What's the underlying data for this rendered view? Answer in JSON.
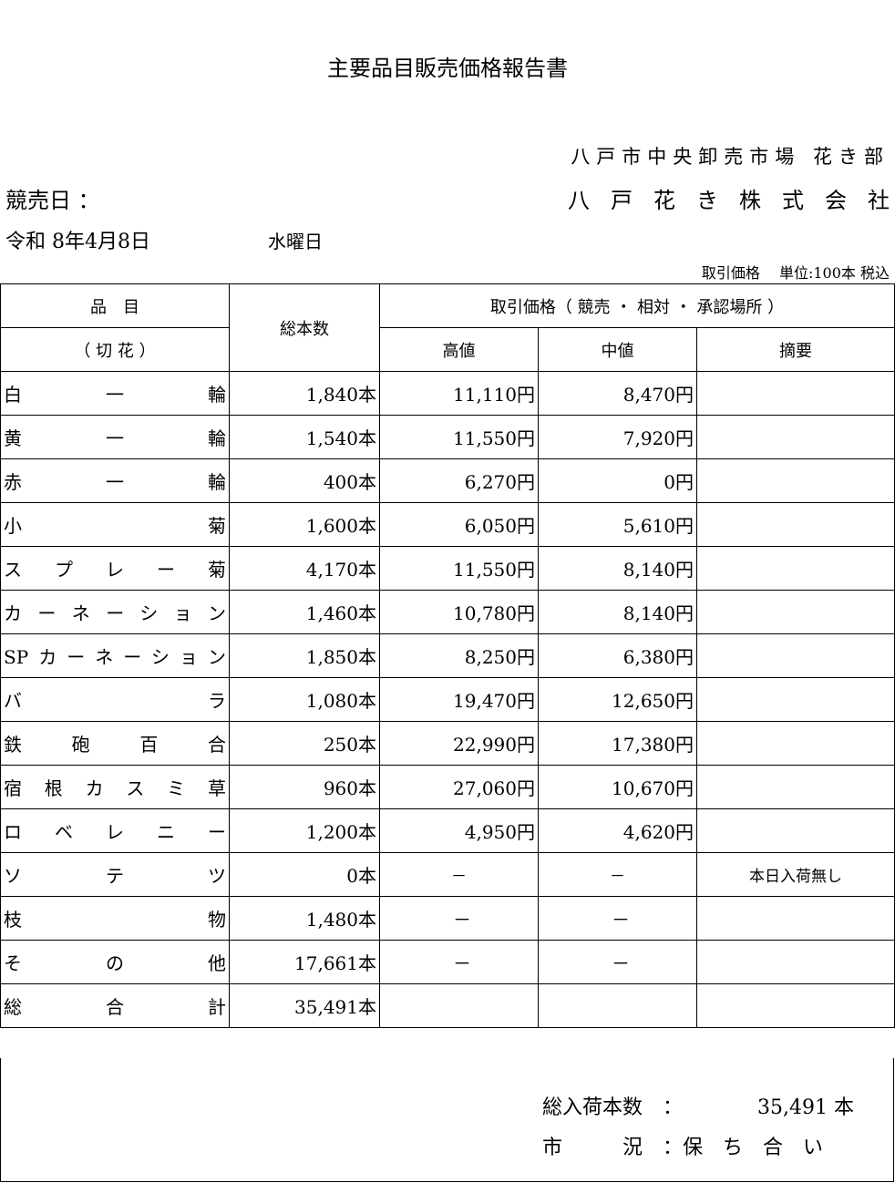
{
  "title": "主要品目販売価格報告書",
  "org_line1": "八戸市中央卸売市場 花き部",
  "org_line2": "八戸花き株式会社",
  "auction_date_label": "競売日 ：",
  "date": "令和 8年4月8日",
  "weekday": "水曜日",
  "unit_note": "取引価格　 単位:100本 税込",
  "table": {
    "header_item": "品　目",
    "header_item_sub": "（ 切 花 ）",
    "header_total": "総本数",
    "header_price": "取引価格（ 競売 ・ 相対 ・ 承認場所 ）",
    "header_high": "高値",
    "header_mid": "中値",
    "header_note": "摘要",
    "rows": [
      {
        "name": "白一輪",
        "count": "1,840本",
        "high": "11,110円",
        "mid": "8,470円",
        "note": ""
      },
      {
        "name": "黄一輪",
        "count": "1,540本",
        "high": "11,550円",
        "mid": "7,920円",
        "note": ""
      },
      {
        "name": "赤一輪",
        "count": "400本",
        "high": "6,270円",
        "mid": "0円",
        "note": ""
      },
      {
        "name": "小菊",
        "count": "1,600本",
        "high": "6,050円",
        "mid": "5,610円",
        "note": ""
      },
      {
        "name": "スプレー菊",
        "count": "4,170本",
        "high": "11,550円",
        "mid": "8,140円",
        "note": ""
      },
      {
        "name": "カーネーション",
        "count": "1,460本",
        "high": "10,780円",
        "mid": "8,140円",
        "note": ""
      },
      {
        "name": "SPカーネーション",
        "count": "1,850本",
        "high": "8,250円",
        "mid": "6,380円",
        "note": ""
      },
      {
        "name": "バラ",
        "count": "1,080本",
        "high": "19,470円",
        "mid": "12,650円",
        "note": ""
      },
      {
        "name": "鉄砲百合",
        "count": "250本",
        "high": "22,990円",
        "mid": "17,380円",
        "note": ""
      },
      {
        "name": "宿根カスミ草",
        "count": "960本",
        "high": "27,060円",
        "mid": "10,670円",
        "note": ""
      },
      {
        "name": "ロベレニー",
        "count": "1,200本",
        "high": "4,950円",
        "mid": "4,620円",
        "note": ""
      },
      {
        "name": "ソテツ",
        "count": "0本",
        "high": "－",
        "mid": "－",
        "note": "本日入荷無し"
      },
      {
        "name": "枝物",
        "count": "1,480本",
        "high": "－",
        "mid": "－",
        "note": ""
      },
      {
        "name": "その他",
        "count": "17,661本",
        "high": "－",
        "mid": "－",
        "note": ""
      },
      {
        "name": "総合計",
        "count": "35,491本",
        "high": "",
        "mid": "",
        "note": ""
      }
    ]
  },
  "summary": {
    "total_label": "総入荷本数　：",
    "total_value": "35,491 本",
    "market_label": "市　　　況　：保　ち　合　い"
  }
}
